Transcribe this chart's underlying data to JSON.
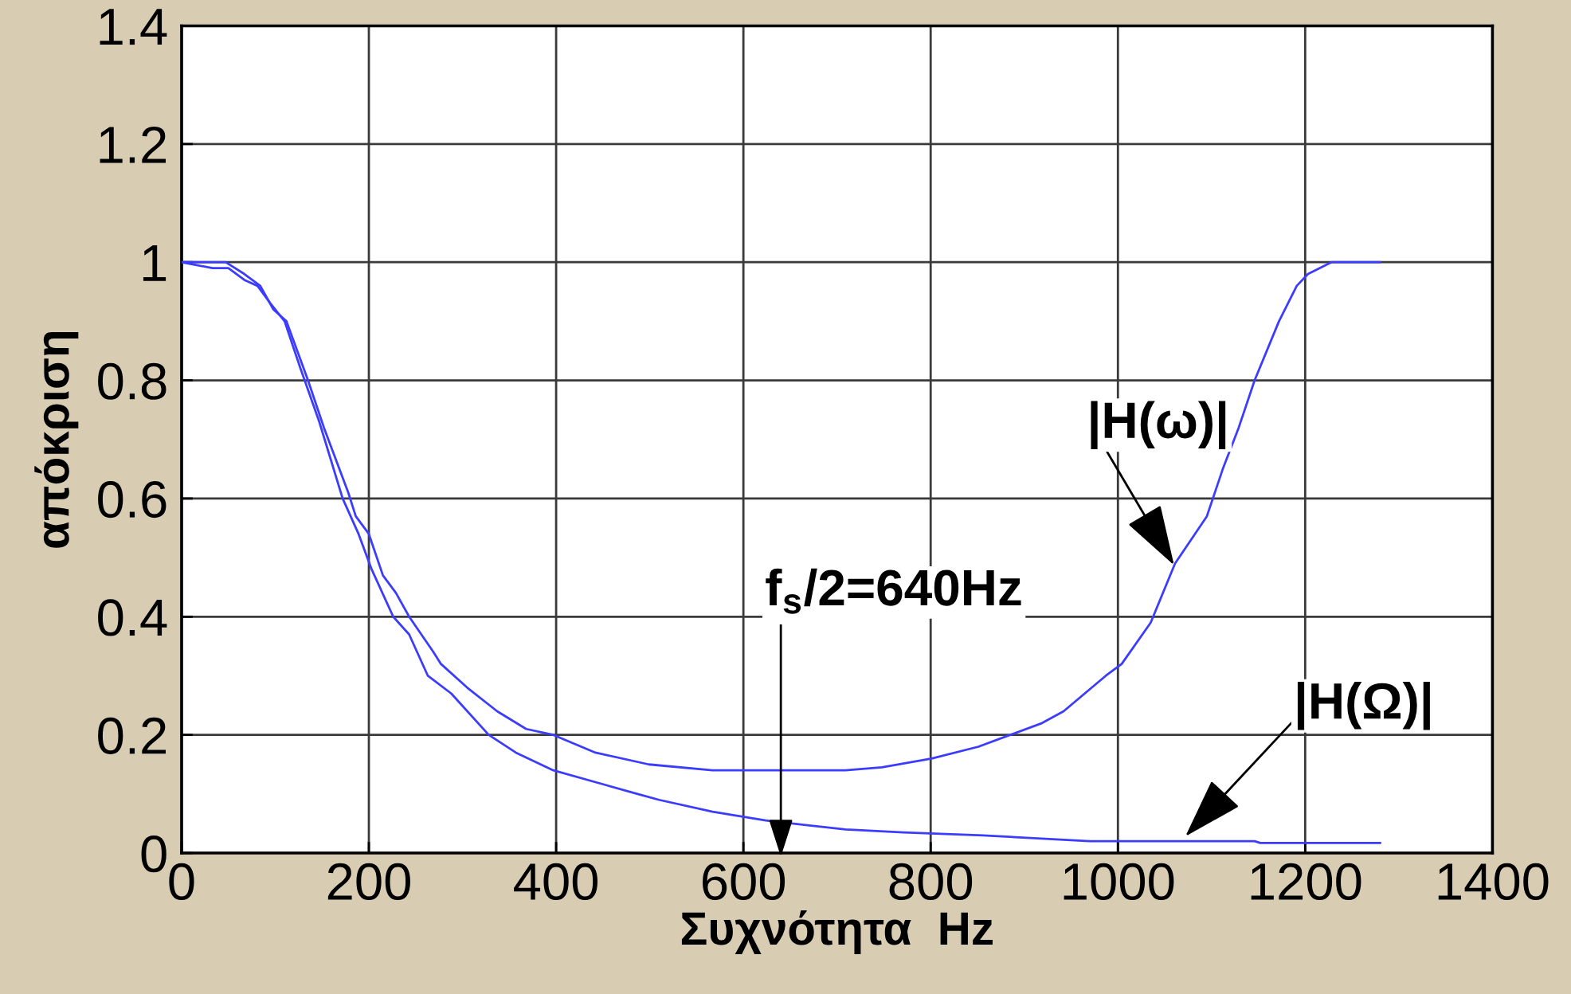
{
  "chart_data": {
    "type": "line",
    "xlabel": "Συχνότητα  Hz",
    "ylabel": "απόκριση",
    "xlim": [
      0,
      1400
    ],
    "ylim": [
      0,
      1.4
    ],
    "xticks": [
      0,
      200,
      400,
      600,
      800,
      1000,
      1200,
      1400
    ],
    "yticks": [
      0,
      0.2,
      0.4,
      0.6,
      0.8,
      1,
      1.2,
      1.4
    ],
    "grid": true,
    "series": [
      {
        "color": "#3c3cff",
        "x": [
          0,
          47,
          67,
          84,
          98,
          112,
          135,
          152,
          178,
          186,
          200,
          215,
          229,
          243,
          269,
          277,
          305,
          337,
          368,
          397,
          442,
          499,
          567,
          640,
          709,
          748,
          801,
          851,
          885,
          919,
          942,
          987,
          1004,
          1035,
          1061,
          1095,
          1112,
          1129,
          1146,
          1172,
          1191,
          1203,
          1228,
          1280
        ],
        "values": [
          1,
          1,
          0.98,
          0.96,
          0.92,
          0.9,
          0.8,
          0.72,
          0.61,
          0.57,
          0.54,
          0.47,
          0.44,
          0.4,
          0.34,
          0.32,
          0.28,
          0.24,
          0.21,
          0.2,
          0.17,
          0.15,
          0.14,
          0.14,
          0.14,
          0.145,
          0.16,
          0.18,
          0.2,
          0.22,
          0.24,
          0.3,
          0.32,
          0.39,
          0.49,
          0.57,
          0.65,
          0.72,
          0.8,
          0.9,
          0.96,
          0.98,
          1,
          1
        ]
      },
      {
        "color": "#3c3cff",
        "x": [
          0,
          33,
          50,
          67,
          81,
          95,
          110,
          127,
          147,
          172,
          189,
          203,
          226,
          243,
          263,
          288,
          328,
          357,
          397,
          442,
          487,
          510,
          567,
          624,
          709,
          771,
          856,
          970,
          1146,
          1152,
          1280
        ],
        "values": [
          1,
          0.99,
          0.99,
          0.97,
          0.96,
          0.93,
          0.9,
          0.82,
          0.73,
          0.6,
          0.54,
          0.48,
          0.4,
          0.37,
          0.3,
          0.27,
          0.2,
          0.17,
          0.14,
          0.12,
          0.1,
          0.09,
          0.07,
          0.055,
          0.04,
          0.035,
          0.03,
          0.02,
          0.02,
          0.017,
          0.017
        ]
      }
    ],
    "ref_lines": [
      {
        "axis": "x",
        "value": 640,
        "label": "f$_{s}$/2=640Hz"
      }
    ],
    "annotations": [
      {
        "text": "|H(ω)|",
        "x": 1060,
        "y": 0.487
      },
      {
        "text": "|H(Ω)|",
        "x": 1072,
        "y": 0.028
      }
    ]
  }
}
